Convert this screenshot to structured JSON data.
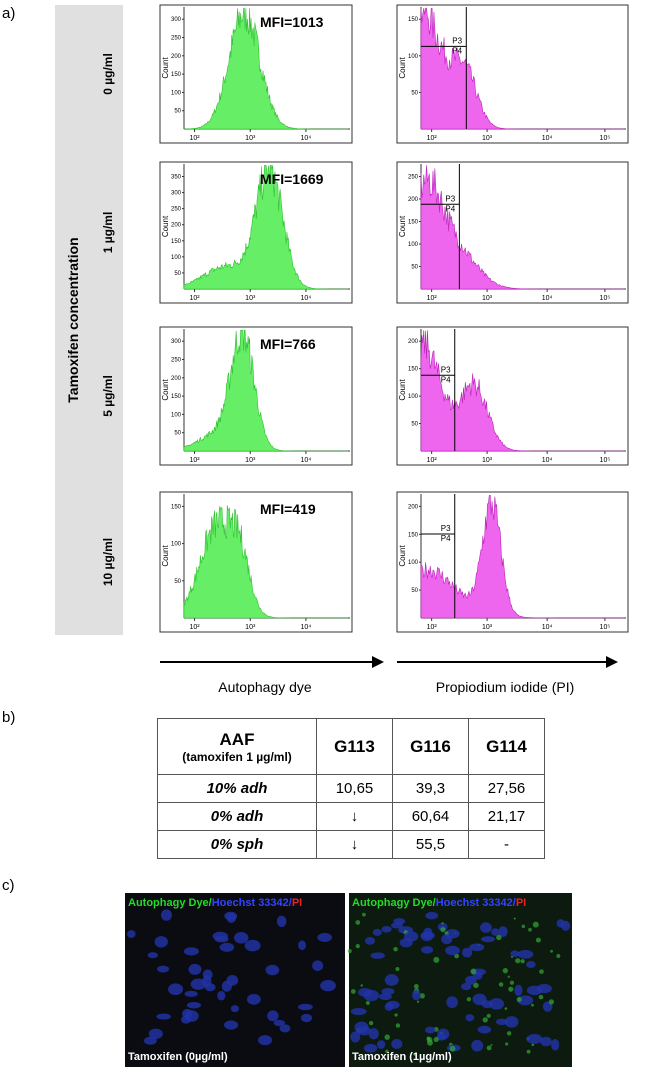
{
  "panel_a": {
    "label": "a)",
    "side_label": "Tamoxifen concentration",
    "count_label": "Count",
    "gate_labels": [
      "P3",
      "P4"
    ],
    "left_xticks": [
      "10²",
      "10³",
      "10⁴"
    ],
    "right_xticks": [
      "10²",
      "10³",
      "10⁴",
      "10⁵"
    ],
    "left_axis_title": "Autophagy dye",
    "right_axis_title": "Propiodium iodide (PI)",
    "rows": [
      {
        "concentration": "0 µg/ml",
        "mfi": "MFI=1013",
        "left_yticks": [
          50,
          100,
          150,
          200,
          250,
          300
        ],
        "right_yticks": [
          50,
          100,
          150
        ]
      },
      {
        "concentration": "1 µg/ml",
        "mfi": "MFI=1669",
        "left_yticks": [
          50,
          100,
          150,
          200,
          250,
          300,
          350
        ],
        "right_yticks": [
          50,
          100,
          150,
          200,
          250
        ]
      },
      {
        "concentration": "5 µg/ml",
        "mfi": "MFI=766",
        "left_yticks": [
          50,
          100,
          150,
          200,
          250,
          300
        ],
        "right_yticks": [
          50,
          100,
          150,
          200
        ]
      },
      {
        "concentration": "10 µg/ml",
        "mfi": "MFI=419",
        "left_yticks": [
          50,
          100,
          150
        ],
        "right_yticks": [
          50,
          100,
          150,
          200
        ]
      }
    ]
  },
  "panel_b": {
    "label": "b)",
    "table": {
      "header": {
        "title": "AAF",
        "subtitle": "(tamoxifen 1 µg/ml)",
        "columns": [
          "G113",
          "G116",
          "G114"
        ]
      },
      "rows": [
        [
          "10% adh",
          "10,65",
          "39,3",
          "27,56"
        ],
        [
          "0% adh",
          "↓",
          "60,64",
          "21,17"
        ],
        [
          "0% sph",
          "↓",
          "55,5",
          "-"
        ]
      ]
    }
  },
  "panel_c": {
    "label": "c)",
    "images": [
      {
        "title_parts": [
          "Autophagy Dye/",
          "Hoechst 33342",
          "/",
          "PI"
        ],
        "caption": "Tamoxifen (0µg/ml)"
      },
      {
        "title_parts": [
          "Autophagy Dye/",
          "Hoechst 33342",
          "/",
          "PI"
        ],
        "caption": "Tamoxifen (1µg/ml)"
      }
    ]
  }
}
